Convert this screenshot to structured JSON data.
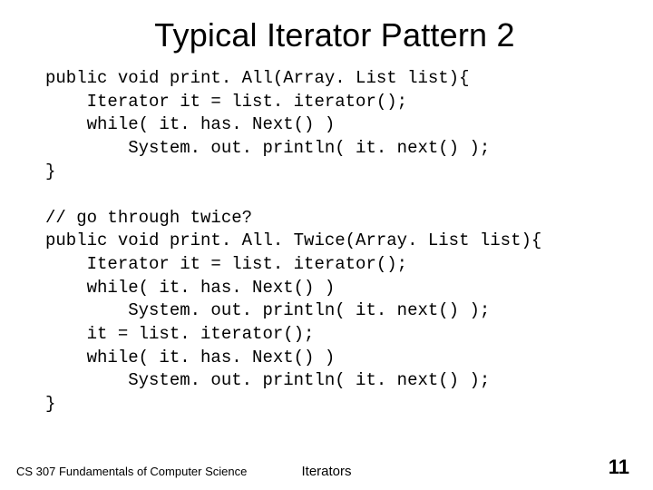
{
  "title": "Typical Iterator Pattern 2",
  "code": "public void print. All(Array. List list){\n    Iterator it = list. iterator();\n    while( it. has. Next() )\n        System. out. println( it. next() );\n}\n\n// go through twice?\npublic void print. All. Twice(Array. List list){\n    Iterator it = list. iterator();\n    while( it. has. Next() )\n        System. out. println( it. next() );\n    it = list. iterator();\n    while( it. has. Next() )\n        System. out. println( it. next() );\n}",
  "footer": {
    "left": "CS 307 Fundamentals of\nComputer Science",
    "center": "Iterators",
    "page": "11"
  },
  "colors": {
    "background": "#ffffff",
    "text": "#000000"
  },
  "typography": {
    "title_fontsize": 36,
    "code_fontsize": 19,
    "code_font": "Courier New",
    "footer_left_fontsize": 13,
    "footer_center_fontsize": 15,
    "footer_page_fontsize": 22,
    "footer_page_weight": 700
  }
}
